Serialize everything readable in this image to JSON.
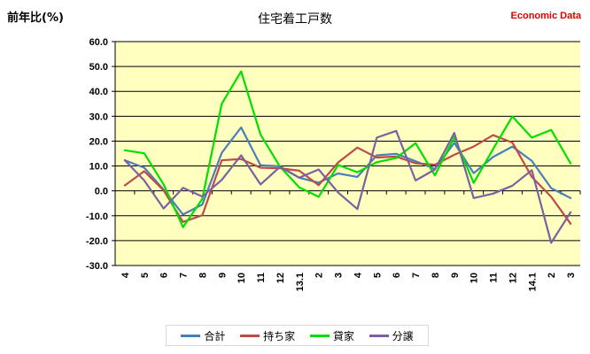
{
  "header": {
    "ylabel": "前年比(%)",
    "title": "住宅着工戸数",
    "brand": "Economic Data"
  },
  "chart_data": {
    "type": "line",
    "title": "住宅着工戸数",
    "ylabel": "前年比(%)",
    "xlabel": "",
    "ylim": [
      -30,
      60
    ],
    "yticks": [
      -30,
      -20,
      -10,
      0,
      10,
      20,
      30,
      40,
      50,
      60
    ],
    "ytick_labels": [
      "-30.0",
      "-20.0",
      "-10.0",
      "0.0",
      "10.0",
      "20.0",
      "30.0",
      "40.0",
      "50.0",
      "60.0"
    ],
    "categories": [
      "4",
      "5",
      "6",
      "7",
      "8",
      "9",
      "10",
      "11",
      "12",
      "13.1",
      "2",
      "3",
      "4",
      "5",
      "6",
      "7",
      "8",
      "9",
      "10",
      "11",
      "12",
      "14.1",
      "2",
      "3"
    ],
    "grid": true,
    "legend_position": "bottom",
    "plot_background": "#ffffc0",
    "series": [
      {
        "name": "合計",
        "color": "#4a7ebb",
        "values": [
          12.3,
          9.3,
          0.5,
          -9.5,
          -5.5,
          15.3,
          25.5,
          10.3,
          9.9,
          5.3,
          3.3,
          7.0,
          5.6,
          14.3,
          14.9,
          11.9,
          8.8,
          19.3,
          7.1,
          13.6,
          17.8,
          12.1,
          1.1,
          -2.9
        ]
      },
      {
        "name": "持ち家",
        "color": "#be4b48",
        "values": [
          2.2,
          7.9,
          0.2,
          -12.5,
          -9.8,
          12.3,
          12.8,
          9.3,
          9.1,
          8.1,
          2.3,
          11.4,
          17.4,
          13.4,
          13.8,
          11.1,
          10.5,
          14.5,
          17.8,
          22.4,
          19.4,
          5.6,
          -2.4,
          -13.2
        ]
      },
      {
        "name": "貸家",
        "color": "#00e000",
        "values": [
          16.3,
          15.1,
          2.6,
          -14.6,
          -3.2,
          35.0,
          48.0,
          22.6,
          9.8,
          1.4,
          -2.4,
          10.4,
          7.5,
          11.5,
          13.2,
          19.2,
          6.2,
          21.6,
          3.2,
          16.8,
          29.9,
          21.4,
          24.5,
          11.0
        ]
      },
      {
        "name": "分譲",
        "color": "#7d60a0",
        "values": [
          12.3,
          4.2,
          -7.1,
          1.2,
          -2.3,
          4.4,
          14.3,
          2.6,
          9.6,
          5.3,
          8.6,
          -0.6,
          -7.3,
          21.4,
          24.1,
          4.2,
          8.6,
          23.3,
          -2.9,
          -1.1,
          2.1,
          8.3,
          -20.9,
          -8.6
        ]
      }
    ]
  },
  "legend": {
    "items": [
      {
        "label": "合計",
        "color": "#4a7ebb"
      },
      {
        "label": "持ち家",
        "color": "#be4b48"
      },
      {
        "label": "貸家",
        "color": "#00e000"
      },
      {
        "label": "分譲",
        "color": "#7d60a0"
      }
    ]
  }
}
